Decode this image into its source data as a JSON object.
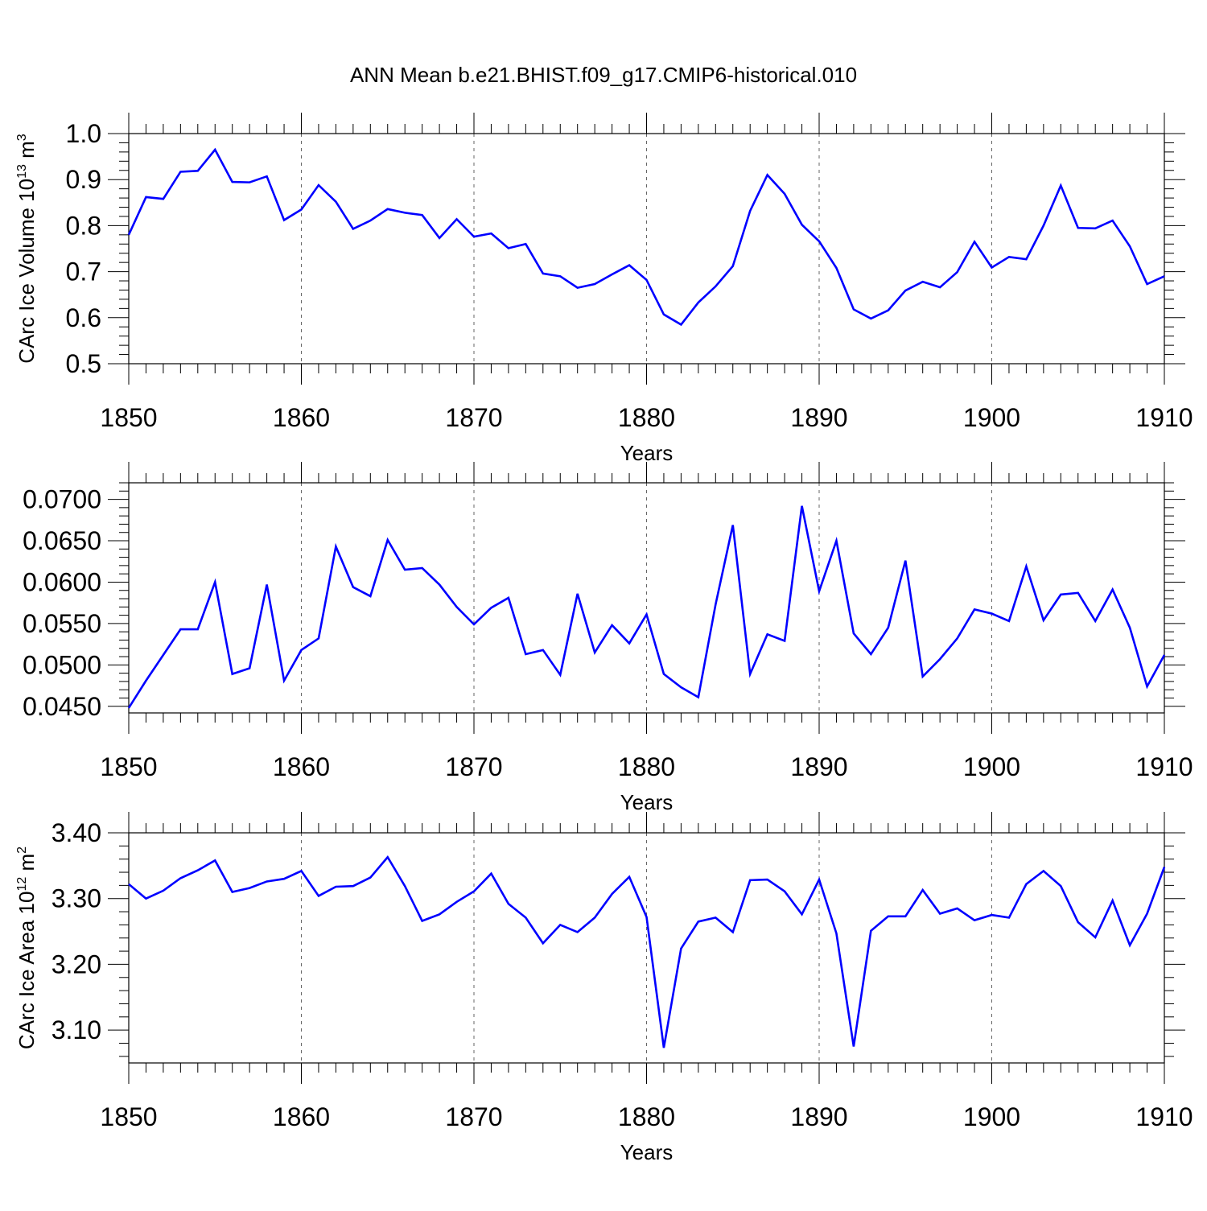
{
  "title": "ANN Mean b.e21.BHIST.f09_g17.CMIP6-historical.010",
  "line_color": "#0000ff",
  "chart_data": [
    {
      "type": "line",
      "ylabel_main": "CArc Ice Volume 10",
      "ylabel_exp": "13",
      "ylabel_tail": " m",
      "ylabel_exp2": "3",
      "xlabel": "Years",
      "xlim": [
        1850,
        1910
      ],
      "ylim": [
        0.5,
        1.0
      ],
      "x_ticks": [
        "1850",
        "1860",
        "1870",
        "1880",
        "1890",
        "1900",
        "1910"
      ],
      "y_ticks": [
        "0.5",
        "0.6",
        "0.7",
        "0.8",
        "0.9",
        "1.0"
      ],
      "y_tick_values": [
        0.5,
        0.6,
        0.7,
        0.8,
        0.9,
        1.0
      ],
      "x_start": 1850,
      "values": [
        0.78,
        0.862,
        0.858,
        0.917,
        0.919,
        0.965,
        0.895,
        0.894,
        0.907,
        0.812,
        0.835,
        0.888,
        0.852,
        0.793,
        0.811,
        0.836,
        0.828,
        0.823,
        0.773,
        0.814,
        0.776,
        0.783,
        0.751,
        0.76,
        0.696,
        0.69,
        0.665,
        0.673,
        0.694,
        0.714,
        0.682,
        0.607,
        0.585,
        0.633,
        0.668,
        0.712,
        0.832,
        0.91,
        0.869,
        0.802,
        0.766,
        0.708,
        0.618,
        0.598,
        0.616,
        0.659,
        0.678,
        0.666,
        0.699,
        0.765,
        0.709,
        0.732,
        0.727,
        0.8,
        0.887,
        0.795,
        0.794,
        0.811,
        0.755,
        0.673,
        0.69
      ]
    },
    {
      "type": "line",
      "ylabel_main": "",
      "xlabel": "Years",
      "xlim": [
        1850,
        1910
      ],
      "ylim": [
        0.0442,
        0.072
      ],
      "x_ticks": [
        "1850",
        "1860",
        "1870",
        "1880",
        "1890",
        "1900",
        "1910"
      ],
      "y_ticks": [
        "0.0450",
        "0.0500",
        "0.0550",
        "0.0600",
        "0.0650",
        "0.0700"
      ],
      "y_tick_values": [
        0.045,
        0.05,
        0.055,
        0.06,
        0.065,
        0.07
      ],
      "x_start": 1850,
      "values": [
        0.0448,
        0.0481,
        0.0512,
        0.0543,
        0.0543,
        0.06,
        0.0489,
        0.0496,
        0.0597,
        0.0481,
        0.0518,
        0.0532,
        0.0643,
        0.0594,
        0.0583,
        0.0651,
        0.0615,
        0.0617,
        0.0597,
        0.057,
        0.0549,
        0.0569,
        0.0581,
        0.0513,
        0.0518,
        0.0488,
        0.0586,
        0.0515,
        0.0548,
        0.0526,
        0.0561,
        0.0489,
        0.0473,
        0.0461,
        0.0573,
        0.0669,
        0.0489,
        0.0537,
        0.0529,
        0.0692,
        0.0589,
        0.065,
        0.0538,
        0.0513,
        0.0545,
        0.0626,
        0.0486,
        0.0507,
        0.0532,
        0.0567,
        0.0562,
        0.0553,
        0.0619,
        0.0554,
        0.0585,
        0.0587,
        0.0553,
        0.0591,
        0.0545,
        0.0474,
        0.0512
      ]
    },
    {
      "type": "line",
      "ylabel_main": "CArc Ice Area 10",
      "ylabel_exp": "12",
      "ylabel_tail": " m",
      "ylabel_exp2": "2",
      "xlabel": "Years",
      "xlim": [
        1850,
        1910
      ],
      "ylim": [
        3.05,
        3.4
      ],
      "x_ticks": [
        "1850",
        "1860",
        "1870",
        "1880",
        "1890",
        "1900",
        "1910"
      ],
      "y_ticks": [
        "3.10",
        "3.20",
        "3.30",
        "3.40"
      ],
      "y_tick_values": [
        3.1,
        3.2,
        3.3,
        3.4
      ],
      "x_start": 1850,
      "values": [
        3.322,
        3.3,
        3.312,
        3.331,
        3.343,
        3.358,
        3.31,
        3.316,
        3.326,
        3.33,
        3.342,
        3.304,
        3.318,
        3.319,
        3.332,
        3.363,
        3.319,
        3.266,
        3.276,
        3.295,
        3.311,
        3.338,
        3.292,
        3.271,
        3.232,
        3.26,
        3.249,
        3.271,
        3.307,
        3.333,
        3.272,
        3.073,
        3.224,
        3.265,
        3.271,
        3.249,
        3.328,
        3.329,
        3.311,
        3.276,
        3.329,
        3.247,
        3.075,
        3.251,
        3.273,
        3.273,
        3.313,
        3.277,
        3.285,
        3.267,
        3.275,
        3.271,
        3.322,
        3.342,
        3.319,
        3.264,
        3.241,
        3.297,
        3.229,
        3.277,
        3.348
      ]
    }
  ]
}
